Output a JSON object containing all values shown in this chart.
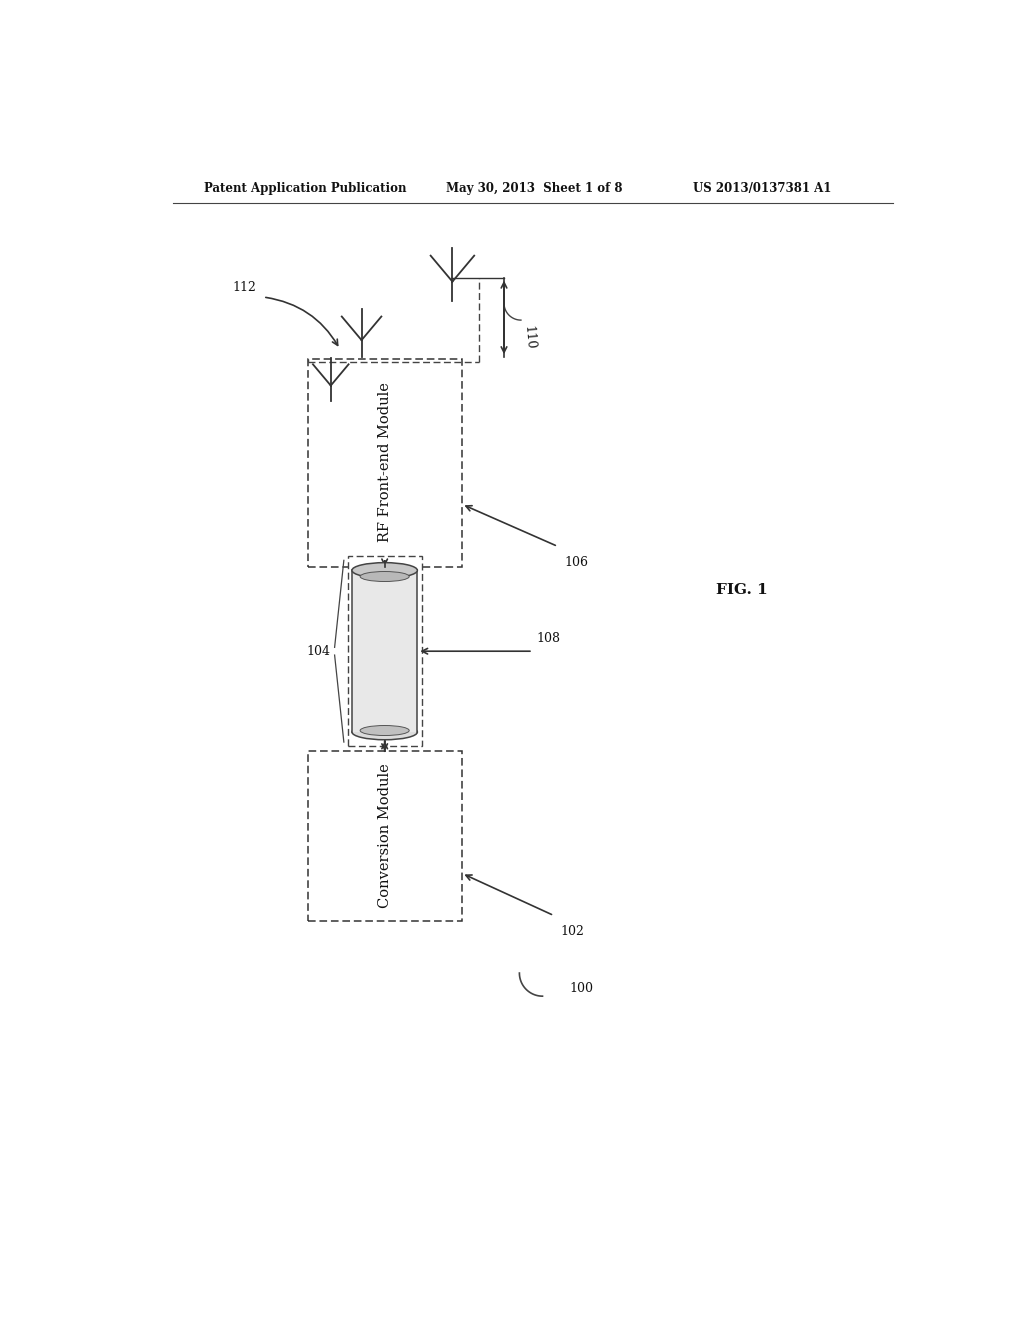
{
  "background_color": "#ffffff",
  "header_left": "Patent Application Publication",
  "header_center": "May 30, 2013  Sheet 1 of 8",
  "header_right": "US 2013/0137381 A1",
  "fig_label": "FIG. 1",
  "box1_label": "RF Front-end Module",
  "box2_label": "Conversion Module",
  "label_100": "100",
  "label_102": "102",
  "label_104": "104",
  "label_106": "106",
  "label_108": "108",
  "label_110": "110",
  "label_112": "112"
}
